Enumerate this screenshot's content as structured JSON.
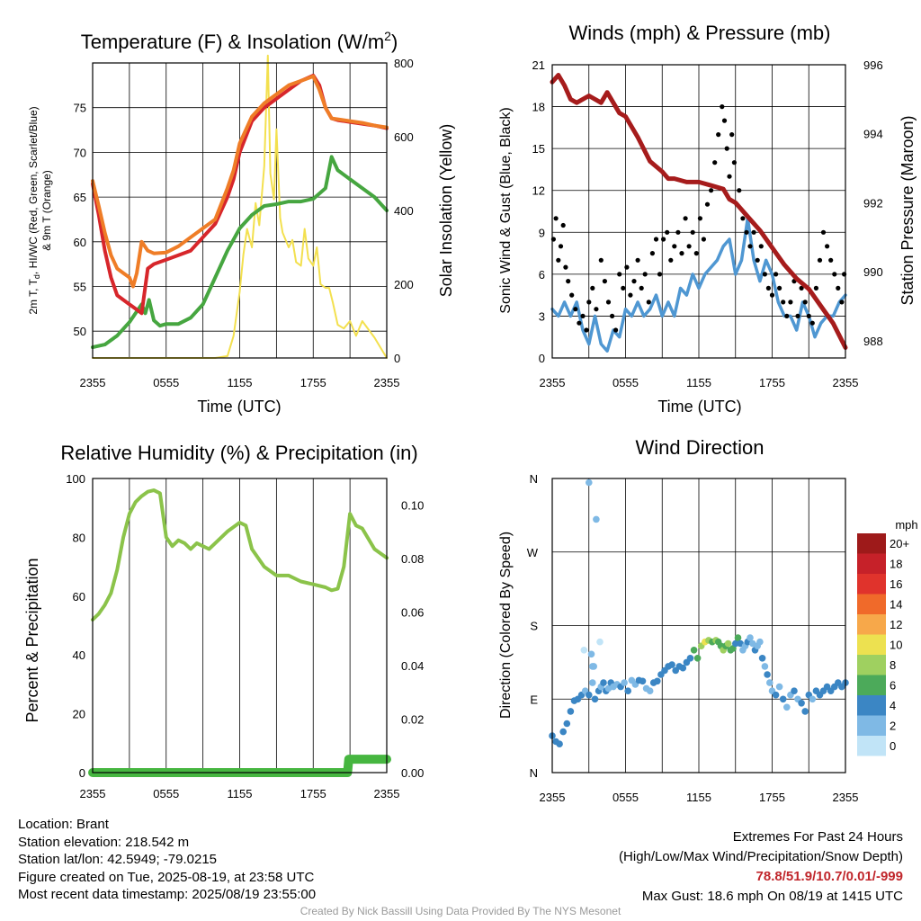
{
  "chart_data": [
    {
      "type": "line",
      "title": "Temperature (F) & Insolation (W/m²)",
      "title_main": "Temperature (F) & Insolation (W/m",
      "title_sup": "2",
      "title_end": ")",
      "xlabel": "Time (UTC)",
      "ylabel_lines": [
        "2m T, T",
        "d",
        ", HI/WC (Red, Green, Scarlet/Blue)",
        "& 9m T (Orange)"
      ],
      "ylabel_right": "Solar Insolation (Yellow)",
      "x_ticks": [
        "2355",
        "0555",
        "1155",
        "1755",
        "2355"
      ],
      "y_ticks": [
        50,
        55,
        60,
        65,
        70,
        75
      ],
      "y_ticks_right": [
        0,
        200,
        400,
        600,
        800
      ],
      "ylim": [
        47,
        80
      ],
      "ylim_right": [
        0,
        800
      ],
      "x_hours": [
        0,
        24
      ],
      "series": [
        {
          "color": "#ef7d27",
          "x": [
            0,
            0.5,
            1,
            1.5,
            2,
            2.5,
            3,
            3.3,
            3.6,
            4,
            4.5,
            5,
            6,
            7,
            8,
            9,
            10,
            11,
            11.5,
            12,
            13,
            14,
            15,
            16,
            17,
            18,
            18.5,
            19,
            19.5,
            20,
            21,
            22,
            23,
            24
          ],
          "values": [
            66.8,
            64,
            61,
            58.5,
            57,
            56.5,
            56,
            55,
            56.5,
            60,
            59,
            58.7,
            58.8,
            59.5,
            60.5,
            61.5,
            62.5,
            66,
            68,
            71,
            74,
            75.5,
            76.5,
            77.5,
            78,
            78.5,
            77,
            75,
            73.8,
            73.7,
            73.5,
            73.3,
            73,
            72.8
          ]
        },
        {
          "color": "#d7262b",
          "x": [
            0,
            0.5,
            1,
            1.5,
            2,
            2.5,
            3,
            3.5,
            4,
            4.5,
            5,
            6,
            7,
            8,
            9,
            10,
            11,
            11.5,
            12,
            13,
            14,
            15,
            16,
            17,
            18,
            18.5,
            19,
            19.5,
            20,
            21,
            22,
            23,
            24
          ],
          "values": [
            66.5,
            63,
            59,
            56,
            54,
            53.5,
            53,
            52.5,
            52,
            57,
            57.5,
            58,
            58.5,
            59,
            60.5,
            62,
            65,
            67,
            70,
            73.5,
            75,
            76,
            77,
            78,
            78.6,
            77.5,
            75,
            73.8,
            73.6,
            73.4,
            73.2,
            73,
            72.7
          ]
        },
        {
          "color": "#46a640",
          "x": [
            0,
            1,
            2,
            3,
            4,
            4.3,
            4.6,
            5,
            5.5,
            6,
            7,
            8,
            9,
            10,
            11,
            12,
            13,
            14,
            15,
            16,
            17,
            18,
            19,
            19.5,
            20,
            21,
            22,
            23,
            24
          ],
          "values": [
            48.2,
            48.5,
            49.5,
            51,
            53,
            52,
            53.5,
            51.2,
            50.6,
            50.8,
            50.8,
            51.5,
            53,
            56,
            59,
            61.5,
            63,
            64,
            64.2,
            64.5,
            64.5,
            64.8,
            66,
            69.5,
            68,
            67,
            66,
            65,
            63.5
          ]
        }
      ],
      "solar": {
        "color": "#f3e04f",
        "x": [
          0,
          2,
          4,
          6,
          8,
          10,
          11,
          11.5,
          12,
          12.3,
          12.6,
          13,
          13.3,
          13.6,
          14,
          14.3,
          14.5,
          14.8,
          15,
          15.3,
          15.5,
          16,
          16.3,
          16.6,
          17,
          17.3,
          17.6,
          18,
          18.3,
          18.6,
          19,
          19.3,
          19.6,
          20,
          20.5,
          21,
          21.5,
          22,
          23,
          24
        ],
        "values": [
          0,
          0,
          0,
          0,
          0,
          0,
          5,
          60,
          180,
          280,
          350,
          300,
          420,
          360,
          520,
          820,
          500,
          430,
          620,
          380,
          340,
          300,
          320,
          260,
          250,
          350,
          270,
          250,
          300,
          200,
          190,
          190,
          150,
          90,
          80,
          100,
          60,
          100,
          55,
          0
        ]
      }
    },
    {
      "type": "line",
      "title": "Winds (mph) & Pressure (mb)",
      "xlabel": "Time (UTC)",
      "ylabel": "Sonic Wind & Gust (Blue, Black)",
      "ylabel_right": "Station Pressure (Maroon)",
      "x_ticks": [
        "2355",
        "0555",
        "1155",
        "1755",
        "2355"
      ],
      "y_ticks": [
        0,
        3,
        6,
        9,
        12,
        15,
        18,
        21
      ],
      "y_ticks_right": [
        988,
        990,
        992,
        994,
        996
      ],
      "ylim": [
        0,
        21
      ],
      "ylim_right": [
        987.5,
        996
      ],
      "x_hours": [
        0,
        24
      ],
      "pressure": {
        "color": "#a61c1c",
        "x": [
          0,
          0.5,
          1,
          1.5,
          2,
          3,
          4,
          4.5,
          5,
          5.5,
          6,
          7,
          8,
          9,
          9.5,
          10,
          11,
          12,
          13,
          14,
          14.5,
          15,
          16,
          17,
          18,
          19,
          20,
          21,
          22,
          23,
          24
        ],
        "values": [
          995.5,
          995.7,
          995.4,
          995.0,
          994.9,
          995.1,
          994.9,
          995.2,
          994.9,
          994.6,
          994.5,
          993.9,
          993.2,
          992.9,
          992.7,
          992.7,
          992.6,
          992.6,
          992.5,
          992.4,
          992.1,
          992.0,
          991.6,
          991.2,
          990.7,
          990.2,
          989.8,
          989.5,
          989.0,
          988.5,
          987.8
        ]
      },
      "wind": {
        "color": "#4f97d2",
        "x": [
          0,
          0.5,
          1,
          1.5,
          2,
          2.5,
          3,
          3.5,
          4,
          4.5,
          5,
          5.5,
          6,
          6.5,
          7,
          7.5,
          8,
          8.5,
          9,
          9.5,
          10,
          10.5,
          11,
          11.5,
          12,
          12.5,
          13,
          13.5,
          14,
          14.5,
          15,
          15.5,
          16,
          16.5,
          17,
          17.5,
          18,
          18.5,
          19,
          19.5,
          20,
          20.5,
          21,
          21.5,
          22,
          22.5,
          23,
          23.5,
          24
        ],
        "values": [
          3.5,
          3,
          4,
          3,
          4,
          2,
          1,
          3,
          1,
          0.5,
          2,
          1.5,
          3.5,
          3,
          4,
          3,
          3.5,
          4.5,
          3,
          4,
          3,
          5,
          4.5,
          6,
          5,
          6,
          6.5,
          7,
          8,
          8.5,
          6,
          7,
          10,
          7,
          5.5,
          7,
          6,
          4,
          3,
          3,
          2,
          4,
          3,
          1.5,
          2.5,
          3,
          3,
          4,
          4.5
        ]
      },
      "gust": {
        "color": "#000000",
        "x": [
          0.1,
          0.3,
          0.5,
          0.7,
          0.9,
          1.1,
          1.3,
          1.6,
          1.9,
          2.2,
          2.5,
          2.8,
          3.0,
          3.3,
          3.6,
          4.0,
          4.3,
          4.6,
          4.9,
          5.2,
          5.5,
          5.8,
          6.1,
          6.4,
          6.7,
          7.0,
          7.3,
          7.6,
          7.9,
          8.2,
          8.5,
          8.8,
          9.1,
          9.4,
          9.7,
          10.0,
          10.3,
          10.6,
          10.9,
          11.2,
          11.5,
          11.8,
          12.1,
          12.4,
          12.7,
          13.0,
          13.3,
          13.6,
          13.9,
          14.1,
          14.3,
          14.5,
          14.7,
          14.9,
          15.1,
          15.3,
          15.6,
          15.9,
          16.2,
          16.5,
          16.8,
          17.1,
          17.4,
          17.7,
          18.0,
          18.3,
          18.6,
          18.9,
          19.2,
          19.5,
          19.8,
          20.1,
          20.4,
          20.7,
          21.0,
          21.3,
          21.6,
          21.9,
          22.2,
          22.5,
          22.8,
          23.1,
          23.4,
          23.7,
          23.9
        ],
        "values": [
          8.5,
          10,
          7,
          8,
          9.5,
          6.5,
          5.5,
          4.5,
          3.5,
          2.5,
          3,
          2,
          4,
          5,
          3.5,
          7,
          5.5,
          4,
          3,
          2,
          6,
          5,
          6.5,
          4.5,
          5.5,
          7,
          5,
          6,
          4,
          7.5,
          8.5,
          6,
          8.5,
          9,
          7,
          8,
          9,
          7.5,
          10,
          8,
          9,
          7.5,
          10,
          8.5,
          11,
          12,
          14,
          16,
          18,
          17,
          15,
          13,
          16,
          14,
          11,
          12,
          10,
          9,
          8,
          9,
          7,
          8,
          6,
          5,
          4.5,
          6,
          5,
          4,
          3,
          4,
          5.5,
          3,
          5,
          4,
          3,
          2.5,
          5,
          7,
          9,
          8,
          7,
          6,
          5,
          4,
          6
        ]
      }
    },
    {
      "type": "line",
      "title": "Relative Humidity (%) & Precipitation (in)",
      "ylabel": "Percent & Precipitation",
      "x_ticks": [
        "2355",
        "0555",
        "1155",
        "1755",
        "2355"
      ],
      "y_ticks": [
        0,
        20,
        40,
        60,
        80,
        100
      ],
      "y_ticks_right": [
        "0.00",
        "0.02",
        "0.04",
        "0.06",
        "0.08",
        "0.10"
      ],
      "ylim": [
        0,
        100
      ],
      "ylim_right": [
        0,
        0.11
      ],
      "x_hours": [
        0,
        24
      ],
      "rh": {
        "color": "#8bc34a",
        "x": [
          0,
          0.5,
          1,
          1.5,
          2,
          2.5,
          3,
          3.5,
          4,
          4.5,
          5,
          5.5,
          6,
          6.5,
          7,
          7.5,
          8,
          8.5,
          9,
          9.5,
          10,
          11,
          12,
          12.5,
          13,
          14,
          15,
          16,
          17,
          18,
          19,
          19.5,
          20,
          20.5,
          21,
          21.5,
          22,
          23,
          24
        ],
        "values": [
          52,
          54,
          57,
          61,
          69,
          80,
          88,
          92,
          94,
          95.5,
          96,
          95,
          80,
          77,
          79,
          78,
          76,
          78,
          77,
          76,
          78,
          82,
          85,
          84,
          76,
          70,
          67,
          67,
          65,
          64,
          63,
          62,
          62.5,
          70,
          88,
          84,
          83,
          76,
          73
        ]
      },
      "precip": {
        "color": "#46b640",
        "x": [
          0,
          2,
          4,
          6,
          8,
          10,
          12,
          14,
          16,
          18,
          20,
          20.8,
          20.9,
          21,
          22,
          23,
          24
        ],
        "values": [
          0,
          0,
          0,
          0,
          0,
          0,
          0,
          0,
          0,
          0,
          0,
          0,
          0.005,
          0.005,
          0.005,
          0.005,
          0.005
        ]
      }
    },
    {
      "type": "scatter",
      "title": "Wind Direction",
      "ylabel": "Direction (Colored By Speed)",
      "x_ticks": [
        "2355",
        "0555",
        "1155",
        "1755",
        "2355"
      ],
      "y_ticks": [
        "N",
        "E",
        "S",
        "W",
        "N"
      ],
      "ylim": [
        0,
        360
      ],
      "x_hours": [
        0,
        24
      ],
      "legend_title": "mph",
      "legend_labels": [
        "20+",
        "18",
        "16",
        "14",
        "12",
        "10",
        "8",
        "6",
        "4",
        "2",
        "0"
      ],
      "legend_colors": [
        "#9e1a1a",
        "#c62129",
        "#e0332c",
        "#f06a2a",
        "#f7a84a",
        "#ede150",
        "#9fd060",
        "#4caa5a",
        "#3b86c4",
        "#7fb9e5",
        "#c1e4f7"
      ],
      "points": {
        "x": [
          0,
          0.3,
          0.6,
          0.9,
          1.2,
          1.5,
          1.8,
          2.1,
          2.4,
          2.7,
          3.0,
          3.3,
          3.5,
          3.8,
          4.0,
          4.2,
          4.4,
          4.6,
          4.8,
          5.0,
          5.3,
          5.6,
          5.9,
          6.2,
          6.5,
          6.8,
          7.1,
          7.4,
          7.7,
          8.0,
          8.3,
          8.6,
          8.9,
          9.2,
          9.5,
          9.8,
          10.1,
          10.4,
          10.7,
          11.0,
          11.3,
          11.6,
          11.9,
          12.2,
          12.5,
          12.8,
          13.1,
          13.4,
          13.6,
          13.8,
          14.0,
          14.2,
          14.4,
          14.6,
          14.8,
          15.0,
          15.2,
          15.4,
          15.6,
          15.8,
          16.0,
          16.2,
          16.4,
          16.6,
          16.8,
          17.0,
          17.2,
          17.4,
          17.6,
          17.8,
          18.0,
          18.3,
          18.6,
          18.9,
          19.2,
          19.5,
          19.8,
          20.1,
          20.4,
          20.7,
          21.0,
          21.3,
          21.6,
          21.9,
          22.2,
          22.5,
          22.8,
          23.1,
          23.4,
          23.7,
          24.0,
          3.2,
          3.4,
          3.6,
          3.0,
          2.6,
          3.3,
          3.9
        ],
        "y": [
          45,
          38,
          35,
          50,
          60,
          75,
          88,
          90,
          95,
          100,
          95,
          110,
          90,
          100,
          105,
          110,
          100,
          103,
          110,
          105,
          108,
          105,
          110,
          100,
          113,
          108,
          113,
          112,
          103,
          100,
          110,
          112,
          120,
          125,
          130,
          132,
          125,
          130,
          128,
          135,
          140,
          150,
          140,
          155,
          160,
          162,
          160,
          162,
          160,
          155,
          150,
          155,
          158,
          150,
          152,
          158,
          165,
          158,
          150,
          155,
          160,
          165,
          158,
          150,
          155,
          160,
          140,
          130,
          120,
          110,
          100,
          95,
          105,
          90,
          80,
          95,
          100,
          90,
          85,
          75,
          95,
          90,
          100,
          95,
          100,
          105,
          100,
          105,
          110,
          105,
          110,
          145,
          130,
          310,
          355,
          150,
          130,
          160
        ],
        "c": [
          4,
          4,
          4,
          4,
          4,
          4,
          4,
          4,
          4,
          2,
          4,
          2,
          4,
          4,
          2,
          4,
          4,
          2,
          4,
          2,
          2,
          4,
          2,
          4,
          2,
          2,
          4,
          4,
          2,
          2,
          4,
          4,
          4,
          4,
          4,
          4,
          4,
          4,
          4,
          4,
          4,
          6,
          6,
          8,
          10,
          8,
          6,
          8,
          6,
          6,
          8,
          6,
          8,
          6,
          6,
          4,
          6,
          4,
          2,
          2,
          4,
          2,
          2,
          4,
          2,
          2,
          4,
          2,
          4,
          2,
          2,
          4,
          2,
          4,
          2,
          2,
          4,
          2,
          4,
          4,
          4,
          2,
          4,
          4,
          4,
          4,
          4,
          4,
          4,
          4,
          4,
          2,
          2,
          2,
          2,
          0,
          2,
          0
        ]
      }
    }
  ],
  "info": {
    "location": "Location: Brant",
    "elevation": "Station elevation: 218.542 m",
    "latlon": "Station lat/lon: 42.5949; -79.0215",
    "created": "Figure created on Tue, 2025-08-19, at 23:58 UTC",
    "recent": "Most recent data timestamp: 2025/08/19 23:55:00"
  },
  "extremes": {
    "title": "Extremes For Past 24 Hours",
    "subtitle": "(High/Low/Max Wind/Precipitation/Snow Depth)",
    "values": "78.8/51.9/10.7/0.01/-999",
    "gust": "Max Gust: 18.6 mph On 08/19 at 1415 UTC"
  },
  "credit": "Created By Nick Bassill Using Data Provided By The NYS Mesonet"
}
